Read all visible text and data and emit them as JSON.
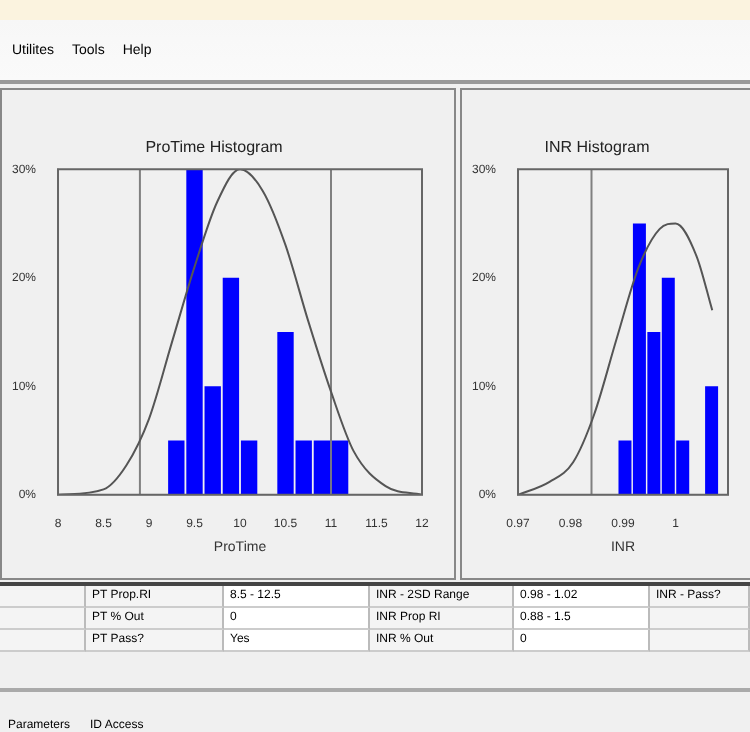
{
  "chart_data": [
    {
      "type": "other",
      "annotations": [
        "Utilites",
        "Tools",
        "Help"
      ]
    },
    {
      "type": "histogram",
      "title": "ProTime Histogram",
      "xlabel": "ProTime",
      "bins": [
        9.2,
        9.4,
        9.6,
        9.8,
        10.0,
        10.2,
        10.4,
        10.6,
        10.8,
        11.0,
        11.2
      ],
      "values": [
        5,
        30,
        10,
        20,
        5,
        0,
        15,
        5,
        5,
        5
      ],
      "color": "#0000ff",
      "series": [
        {
          "type": "line",
          "color": "#555555",
          "x": [
            8,
            8.5,
            8.75,
            9,
            9.25,
            9.5,
            9.75,
            10,
            10.25,
            10.5,
            10.75,
            11,
            11.25,
            11.6,
            12
          ],
          "values": [
            0,
            0.5,
            2.7,
            7,
            14,
            21,
            27,
            30,
            28,
            23,
            16,
            9.5,
            4,
            0.8,
            0
          ]
        }
      ],
      "xlim": [
        8,
        12
      ],
      "xticks": [
        8,
        8.5,
        9,
        9.5,
        10,
        10.5,
        11,
        11.5,
        12
      ],
      "ylim": [
        0,
        30
      ],
      "yticks": [
        {
          "value": 0,
          "label": "0%"
        },
        {
          "value": 10,
          "label": "10%"
        },
        {
          "value": 20,
          "label": "20%"
        },
        {
          "value": 30,
          "label": "30%"
        }
      ],
      "ref_lines": [
        {
          "axis": "x",
          "value": 8.9,
          "color": "#808080"
        },
        {
          "axis": "x",
          "value": 11.0,
          "color": "#808080"
        }
      ],
      "grid": false,
      "legend": false,
      "marker": "none"
    },
    {
      "type": "histogram",
      "title": "INR Histogram",
      "xlabel": "INR",
      "bins": [
        0.989,
        0.99175,
        0.9945,
        0.99725,
        1.0,
        1.00275,
        1.0055,
        1.00825
      ],
      "values": [
        5,
        25,
        15,
        20,
        5,
        0,
        10
      ],
      "color": "#0000ff",
      "series": [
        {
          "type": "line",
          "color": "#555555",
          "x": [
            0.97,
            0.976,
            0.9805,
            0.9845,
            0.9888,
            0.993,
            0.997,
            1.0,
            1.004,
            1.007
          ],
          "values": [
            0,
            1.2,
            3,
            7.4,
            14.4,
            21,
            24.5,
            25,
            22,
            17
          ]
        }
      ],
      "xlim": [
        0.97,
        1.01
      ],
      "xticks": [
        0.97,
        0.98,
        0.99,
        1
      ],
      "ylim": [
        0,
        30
      ],
      "yticks": [
        {
          "value": 0,
          "label": "0%"
        },
        {
          "value": 10,
          "label": "10%"
        },
        {
          "value": 20,
          "label": "20%"
        },
        {
          "value": 30,
          "label": "30%"
        }
      ],
      "ref_lines": [
        {
          "axis": "x",
          "value": 0.984,
          "color": "#808080"
        }
      ],
      "grid": false,
      "legend": false,
      "marker": "none"
    },
    {
      "type": "other",
      "annotations": [
        null,
        "PT Prop.RI",
        "8.5 - 12.5",
        "INR - 2SD Range",
        "0.98 - 1.02",
        "INR - Pass?",
        null,
        "PT % Out",
        "0",
        "INR Prop RI",
        "0.88 - 1.5",
        null,
        null,
        "PT Pass?",
        "Yes",
        "INR % Out",
        "0",
        null
      ]
    },
    {
      "type": "other",
      "annotations": [
        "Parameters",
        "ID Access"
      ]
    }
  ]
}
